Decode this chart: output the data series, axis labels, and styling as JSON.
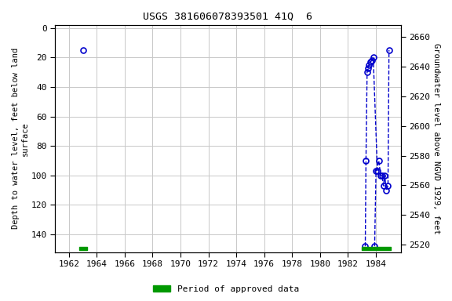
{
  "title": "USGS 381606078393501 41Q  6",
  "ylabel_left": "Depth to water level, feet below land\nsurface",
  "ylabel_right": "Groundwater level above NGVD 1929, feet",
  "xlim": [
    1961.0,
    1985.8
  ],
  "ylim_left": [
    152,
    -2
  ],
  "ylim_right": [
    2515,
    2668
  ],
  "xticks": [
    1962,
    1964,
    1966,
    1968,
    1970,
    1972,
    1974,
    1976,
    1978,
    1980,
    1982,
    1984
  ],
  "yticks_left": [
    0,
    20,
    40,
    60,
    80,
    100,
    120,
    140
  ],
  "yticks_right": [
    2520,
    2540,
    2560,
    2580,
    2600,
    2620,
    2640,
    2660
  ],
  "grid_color": "#c8c8c8",
  "data_color": "#0000cc",
  "green_color": "#009900",
  "line1_x": [
    1983.25,
    1983.3,
    1983.38,
    1983.45,
    1983.52,
    1983.62,
    1983.72,
    1983.82,
    1984.12
  ],
  "line1_y": [
    148,
    90,
    30,
    27,
    25,
    23,
    22,
    20,
    97
  ],
  "line2_x": [
    1983.92,
    1984.02,
    1984.22,
    1984.35,
    1984.45,
    1984.55,
    1984.65,
    1984.75,
    1984.88,
    1984.95
  ],
  "line2_y": [
    148,
    97,
    90,
    100,
    100,
    107,
    100,
    110,
    107,
    15
  ],
  "point_early_x": 1963.0,
  "point_early_y": 15,
  "period1_start": 1962.75,
  "period1_end": 1963.3,
  "period2_start": 1983.0,
  "period2_end": 1985.1,
  "period_depth": 149.5
}
